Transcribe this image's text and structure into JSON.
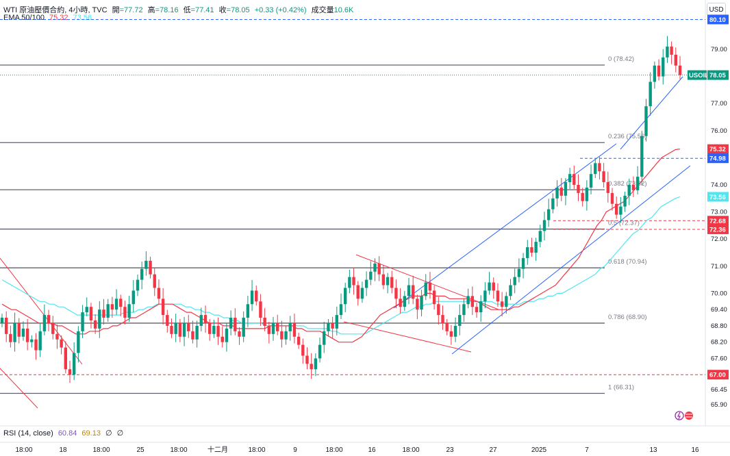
{
  "header": {
    "symbol_line": "WTI 原油壓價合約, 4小時, TVC",
    "open_label": "開",
    "open": "=77.72",
    "high_label": "高",
    "high": "=78.16",
    "low_label": "低",
    "low": "=77.41",
    "close_label": "收",
    "close": "=78.05",
    "change": "+0.33 (+0.42%)",
    "volume_label": "成交量",
    "volume": "10.6K",
    "ema_label": "EMA 50/100",
    "ema50": "75.32",
    "ema100": "73.56"
  },
  "currency_button": "USD",
  "rsi": {
    "label": "RSI (14, close)",
    "v1": "60.84",
    "v2": "69.13",
    "v3": "∅",
    "v4": "∅"
  },
  "colors": {
    "up": "#089981",
    "down": "#f23645",
    "ema50": "#f23645",
    "ema100": "#4ee6f0",
    "trend_blue": "#2962ff",
    "trend_red": "#f23645",
    "fib_line": "#5d606b"
  },
  "chart_data": {
    "type": "candlestick",
    "title": "WTI 原油壓價合約, 4小時, TVC",
    "y_axis_ticks": [
      "79.00",
      "78.00",
      "77.00",
      "76.00",
      "75.00",
      "74.00",
      "73.00",
      "72.00",
      "71.00",
      "70.00",
      "69.40",
      "68.80",
      "68.20",
      "67.60",
      "67.00",
      "66.45",
      "65.90"
    ],
    "x_axis_ticks": [
      "18:00",
      "18",
      "18:00",
      "25",
      "18:00",
      "十二月",
      "18:00",
      "9",
      "18:00",
      "16",
      "18:00",
      "23",
      "27",
      "2025",
      "7",
      "13",
      "16"
    ],
    "price_tags": [
      {
        "label": "USOIL",
        "value": "78.05",
        "color": "#089981"
      },
      {
        "value": "75.32",
        "color": "#f23645"
      },
      {
        "value": "74.98",
        "color": "#2962ff"
      },
      {
        "value": "73.56",
        "color": "#4ee6f0"
      },
      {
        "value": "72.68",
        "color": "#f23645"
      },
      {
        "value": "72.36",
        "color": "#f23645"
      },
      {
        "value": "67.00",
        "color": "#f23645"
      },
      {
        "value": "80.10",
        "color": "#2962ff"
      }
    ],
    "fibonacci": [
      {
        "level": "0",
        "price": 78.42,
        "text": "0 (78.42)"
      },
      {
        "level": "0.236",
        "price": 75.56,
        "text": "0.236 (75.56)"
      },
      {
        "level": "0.382",
        "price": 73.82,
        "text": "0.382 (73.82)"
      },
      {
        "level": "0.5",
        "price": 72.37,
        "text": "0.5 (72.37)"
      },
      {
        "level": "0.618",
        "price": 70.94,
        "text": "0.618 (70.94)"
      },
      {
        "level": "0.786",
        "price": 68.9,
        "text": "0.786 (68.90)"
      },
      {
        "level": "1",
        "price": 66.31,
        "text": "1 (66.31)"
      }
    ],
    "dashed_levels": [
      80.1,
      74.98,
      72.68,
      72.36,
      67.0
    ],
    "close_series": [
      69.1,
      68.5,
      68.2,
      68.9,
      68.4,
      68.7,
      68.2,
      68.3,
      67.9,
      68.6,
      69.2,
      68.9,
      68.5,
      68.3,
      68.0,
      67.2,
      67.0,
      67.8,
      68.6,
      69.3,
      69.5,
      69.0,
      68.7,
      69.4,
      69.1,
      69.6,
      69.4,
      69.8,
      69.5,
      69.1,
      69.6,
      70.1,
      70.5,
      70.9,
      71.2,
      70.7,
      70.2,
      69.8,
      69.2,
      68.8,
      68.5,
      68.9,
      68.4,
      68.9,
      68.6,
      68.3,
      68.8,
      69.2,
      68.9,
      68.5,
      68.8,
      68.4,
      68.2,
      68.7,
      69.1,
      68.6,
      68.4,
      69.1,
      69.6,
      70.1,
      69.7,
      69.1,
      68.8,
      68.5,
      68.9,
      68.6,
      68.3,
      68.6,
      68.9,
      68.4,
      68.1,
      67.7,
      67.4,
      67.2,
      67.6,
      68.1,
      68.6,
      68.9,
      68.7,
      69.2,
      69.6,
      70.2,
      70.6,
      70.3,
      69.8,
      70.2,
      70.5,
      70.8,
      71.1,
      70.7,
      70.3,
      70.6,
      70.2,
      69.8,
      69.5,
      69.9,
      70.3,
      69.8,
      69.4,
      69.9,
      70.4,
      70.1,
      69.6,
      69.2,
      68.9,
      68.6,
      68.4,
      68.8,
      69.2,
      69.6,
      69.9,
      69.5,
      69.3,
      69.7,
      70.1,
      70.4,
      70.1,
      69.7,
      69.5,
      69.9,
      70.3,
      70.6,
      70.9,
      71.3,
      71.7,
      71.5,
      71.9,
      72.3,
      72.7,
      73.1,
      73.5,
      73.9,
      73.6,
      74.1,
      74.4,
      74.0,
      73.7,
      73.4,
      73.9,
      74.4,
      74.8,
      74.5,
      74.1,
      73.7,
      73.3,
      72.9,
      73.2,
      73.6,
      74.0,
      73.8,
      74.3,
      75.8,
      76.9,
      77.8,
      78.4,
      78.0,
      78.7,
      79.1,
      78.8,
      78.4,
      78.05
    ],
    "ema50_series": [
      69.6,
      69.5,
      69.4,
      69.4,
      69.3,
      69.2,
      69.1,
      69.0,
      68.9,
      68.9,
      68.9,
      68.9,
      68.8,
      68.8,
      68.7,
      68.6,
      68.5,
      68.5,
      68.5,
      68.6,
      68.6,
      68.6,
      68.7,
      68.7,
      68.8,
      68.8,
      68.9,
      69.0,
      69.1,
      69.1,
      69.2,
      69.3,
      69.4,
      69.5,
      69.6,
      69.6,
      69.6,
      69.6,
      69.5,
      69.4,
      69.3,
      69.3,
      69.2,
      69.1,
      69.0,
      68.9,
      68.9,
      68.9,
      68.8,
      68.8,
      68.8,
      68.7,
      68.7,
      68.7,
      68.7,
      68.7,
      68.7,
      68.7,
      68.8,
      68.8,
      68.8,
      68.8,
      68.8,
      68.8,
      68.7,
      68.7,
      68.6,
      68.6,
      68.6,
      68.6,
      68.5,
      68.4,
      68.3,
      68.2,
      68.2,
      68.2,
      68.2,
      68.3,
      68.4,
      68.6,
      68.8,
      69.0,
      69.2,
      69.3,
      69.4,
      69.5,
      69.6,
      69.7,
      69.8,
      69.9,
      69.9,
      69.9,
      70.0,
      70.0,
      69.9,
      69.9,
      69.9,
      69.8,
      69.8,
      69.8,
      69.8,
      69.8,
      69.7,
      69.7,
      69.6,
      69.5,
      69.4,
      69.4,
      69.4,
      69.4,
      69.4,
      69.5,
      69.5,
      69.6,
      69.7,
      69.8,
      69.9,
      70.0,
      70.1,
      70.2,
      70.3,
      70.5,
      70.7,
      70.9,
      71.1,
      71.3,
      71.6,
      71.9,
      72.2,
      72.5,
      72.7,
      73.0,
      73.1,
      73.2,
      73.3,
      73.4,
      73.6,
      73.8,
      74.0,
      74.2,
      74.4,
      74.6,
      74.8,
      75.0,
      75.1,
      75.2,
      75.3,
      75.32
    ],
    "ema100_series": [
      70.5,
      70.4,
      70.3,
      70.2,
      70.1,
      70.0,
      69.9,
      69.8,
      69.7,
      69.7,
      69.6,
      69.6,
      69.5,
      69.5,
      69.4,
      69.3,
      69.2,
      69.2,
      69.2,
      69.2,
      69.2,
      69.2,
      69.2,
      69.2,
      69.2,
      69.2,
      69.3,
      69.3,
      69.3,
      69.4,
      69.4,
      69.5,
      69.5,
      69.6,
      69.6,
      69.6,
      69.6,
      69.6,
      69.6,
      69.5,
      69.5,
      69.4,
      69.4,
      69.3,
      69.3,
      69.2,
      69.2,
      69.1,
      69.1,
      69.0,
      69.0,
      68.9,
      68.9,
      68.9,
      68.9,
      68.9,
      68.8,
      68.8,
      68.8,
      68.8,
      68.8,
      68.8,
      68.8,
      68.8,
      68.8,
      68.7,
      68.7,
      68.7,
      68.7,
      68.7,
      68.6,
      68.6,
      68.5,
      68.5,
      68.5,
      68.5,
      68.5,
      68.5,
      68.6,
      68.7,
      68.8,
      68.9,
      69.0,
      69.1,
      69.2,
      69.3,
      69.3,
      69.4,
      69.5,
      69.5,
      69.6,
      69.6,
      69.7,
      69.7,
      69.7,
      69.7,
      69.7,
      69.7,
      69.7,
      69.7,
      69.7,
      69.7,
      69.7,
      69.7,
      69.7,
      69.6,
      69.6,
      69.6,
      69.6,
      69.6,
      69.6,
      69.7,
      69.7,
      69.7,
      69.8,
      69.8,
      69.9,
      69.9,
      70.0,
      70.0,
      70.1,
      70.2,
      70.3,
      70.4,
      70.5,
      70.6,
      70.7,
      70.9,
      71.0,
      71.2,
      71.4,
      71.6,
      71.8,
      72.0,
      72.2,
      72.3,
      72.5,
      72.7,
      72.8,
      73.0,
      73.2,
      73.3,
      73.4,
      73.5,
      73.56
    ]
  }
}
